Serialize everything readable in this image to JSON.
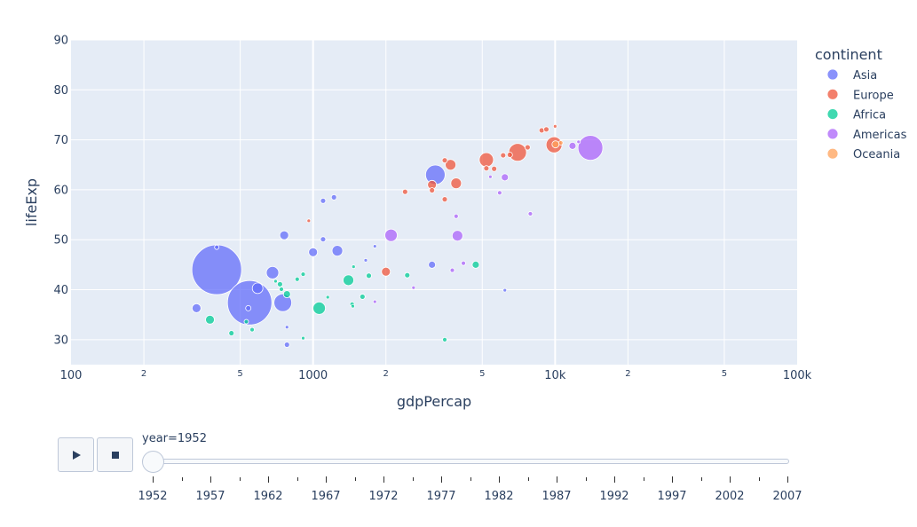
{
  "chart_data": {
    "type": "scatter",
    "subtype": "bubble",
    "xlabel": "gdpPercap",
    "ylabel": "lifeExp",
    "xscale": "log",
    "xlim": [
      100,
      100000
    ],
    "ylim": [
      25,
      90
    ],
    "x_tick_labels": [
      {
        "value": 100,
        "label": "100",
        "major": true
      },
      {
        "value": 200,
        "label": "2",
        "major": false
      },
      {
        "value": 500,
        "label": "5",
        "major": false
      },
      {
        "value": 1000,
        "label": "1000",
        "major": true
      },
      {
        "value": 2000,
        "label": "2",
        "major": false
      },
      {
        "value": 5000,
        "label": "5",
        "major": false
      },
      {
        "value": 10000,
        "label": "10k",
        "major": true
      },
      {
        "value": 20000,
        "label": "2",
        "major": false
      },
      {
        "value": 50000,
        "label": "5",
        "major": false
      },
      {
        "value": 100000,
        "label": "100k",
        "major": true
      }
    ],
    "y_ticks": [
      30,
      40,
      50,
      60,
      70,
      80,
      90
    ],
    "legend": {
      "title": "continent",
      "placement": "right"
    },
    "series": [
      {
        "name": "Asia",
        "color": "#636efa",
        "points": [
          {
            "x": 400,
            "y": 44,
            "size": 28
          },
          {
            "x": 547,
            "y": 37.4,
            "size": 25
          },
          {
            "x": 750,
            "y": 37.4,
            "size": 10
          },
          {
            "x": 680,
            "y": 43.4,
            "size": 7
          },
          {
            "x": 590,
            "y": 40.3,
            "size": 6
          },
          {
            "x": 3200,
            "y": 63,
            "size": 11
          },
          {
            "x": 330,
            "y": 36.3,
            "size": 5
          },
          {
            "x": 760,
            "y": 50.9,
            "size": 5
          },
          {
            "x": 1000,
            "y": 47.5,
            "size": 5
          },
          {
            "x": 1260,
            "y": 47.8,
            "size": 6
          },
          {
            "x": 1100,
            "y": 57.8,
            "size": 3
          },
          {
            "x": 1220,
            "y": 58.5,
            "size": 3
          },
          {
            "x": 1100,
            "y": 50.1,
            "size": 3
          },
          {
            "x": 780,
            "y": 29,
            "size": 3
          },
          {
            "x": 3100,
            "y": 45,
            "size": 4
          },
          {
            "x": 400,
            "y": 48.5,
            "size": 2.5
          },
          {
            "x": 540,
            "y": 36.3,
            "size": 3
          },
          {
            "x": 6200,
            "y": 39.9,
            "size": 2
          },
          {
            "x": 780,
            "y": 32.5,
            "size": 2
          },
          {
            "x": 1650,
            "y": 45.9,
            "size": 2
          },
          {
            "x": 1800,
            "y": 48.7,
            "size": 2
          }
        ]
      },
      {
        "name": "Europe",
        "color": "#EF553B",
        "points": [
          {
            "x": 7000,
            "y": 67.5,
            "size": 10
          },
          {
            "x": 9900,
            "y": 69,
            "size": 9
          },
          {
            "x": 5200,
            "y": 66,
            "size": 8
          },
          {
            "x": 3700,
            "y": 65,
            "size": 6
          },
          {
            "x": 3900,
            "y": 61.3,
            "size": 6
          },
          {
            "x": 3100,
            "y": 61,
            "size": 5
          },
          {
            "x": 2000,
            "y": 43.6,
            "size": 5
          },
          {
            "x": 5600,
            "y": 64.2,
            "size": 3
          },
          {
            "x": 3500,
            "y": 65.9,
            "size": 3
          },
          {
            "x": 8800,
            "y": 71.9,
            "size": 3
          },
          {
            "x": 9200,
            "y": 72.1,
            "size": 3
          },
          {
            "x": 2400,
            "y": 59.6,
            "size": 3
          },
          {
            "x": 3100,
            "y": 59.9,
            "size": 3
          },
          {
            "x": 6100,
            "y": 66.9,
            "size": 3
          },
          {
            "x": 6500,
            "y": 67,
            "size": 3
          },
          {
            "x": 10000,
            "y": 72.7,
            "size": 2
          },
          {
            "x": 7700,
            "y": 68.5,
            "size": 3
          },
          {
            "x": 3500,
            "y": 58.1,
            "size": 3
          },
          {
            "x": 5200,
            "y": 64.3,
            "size": 3
          },
          {
            "x": 960,
            "y": 53.8,
            "size": 2
          }
        ]
      },
      {
        "name": "Africa",
        "color": "#00cc96",
        "points": [
          {
            "x": 1060,
            "y": 36.3,
            "size": 7
          },
          {
            "x": 1400,
            "y": 41.9,
            "size": 6
          },
          {
            "x": 375,
            "y": 34,
            "size": 5
          },
          {
            "x": 4700,
            "y": 45,
            "size": 4
          },
          {
            "x": 780,
            "y": 39.1,
            "size": 4
          },
          {
            "x": 1700,
            "y": 42.8,
            "size": 3
          },
          {
            "x": 2450,
            "y": 42.9,
            "size": 3
          },
          {
            "x": 1600,
            "y": 38.6,
            "size": 3
          },
          {
            "x": 460,
            "y": 31.3,
            "size": 3
          },
          {
            "x": 530,
            "y": 33.6,
            "size": 2.5
          },
          {
            "x": 730,
            "y": 41.1,
            "size": 3
          },
          {
            "x": 860,
            "y": 42.1,
            "size": 2.5
          },
          {
            "x": 910,
            "y": 43.1,
            "size": 2.5
          },
          {
            "x": 3500,
            "y": 30,
            "size": 2.5
          },
          {
            "x": 1450,
            "y": 37.1,
            "size": 2.5
          },
          {
            "x": 740,
            "y": 40.1,
            "size": 2.5
          },
          {
            "x": 560,
            "y": 32,
            "size": 2.5
          },
          {
            "x": 1470,
            "y": 44.6,
            "size": 2
          },
          {
            "x": 1150,
            "y": 38.5,
            "size": 2
          },
          {
            "x": 1460,
            "y": 36.7,
            "size": 2
          },
          {
            "x": 700,
            "y": 41.7,
            "size": 2
          },
          {
            "x": 910,
            "y": 30.3,
            "size": 2
          }
        ]
      },
      {
        "name": "Americas",
        "color": "#ab63fa",
        "points": [
          {
            "x": 13990,
            "y": 68.4,
            "size": 14
          },
          {
            "x": 2100,
            "y": 50.9,
            "size": 7
          },
          {
            "x": 3950,
            "y": 50.8,
            "size": 6
          },
          {
            "x": 6200,
            "y": 62.5,
            "size": 4
          },
          {
            "x": 11800,
            "y": 68.8,
            "size": 4
          },
          {
            "x": 3900,
            "y": 54.7,
            "size": 2.5
          },
          {
            "x": 5900,
            "y": 59.4,
            "size": 2.5
          },
          {
            "x": 7900,
            "y": 55.2,
            "size": 2.5
          },
          {
            "x": 3760,
            "y": 43.9,
            "size": 2.5
          },
          {
            "x": 4180,
            "y": 45.3,
            "size": 2.5
          },
          {
            "x": 2600,
            "y": 40.4,
            "size": 2
          },
          {
            "x": 1800,
            "y": 37.6,
            "size": 2
          },
          {
            "x": 5400,
            "y": 62.6,
            "size": 2
          },
          {
            "x": 12500,
            "y": 69.6,
            "size": 2
          }
        ]
      },
      {
        "name": "Oceania",
        "color": "#FFA15A",
        "points": [
          {
            "x": 10040,
            "y": 69.1,
            "size": 4
          },
          {
            "x": 10560,
            "y": 69.4,
            "size": 2.5
          }
        ]
      }
    ]
  },
  "animation": {
    "play_icon": "play-icon",
    "stop_icon": "stop-icon",
    "slider_label": "year=1952",
    "years": [
      "1952",
      "1957",
      "1962",
      "1967",
      "1972",
      "1977",
      "1982",
      "1987",
      "1992",
      "1997",
      "2002",
      "2007"
    ],
    "current_index": 0
  }
}
